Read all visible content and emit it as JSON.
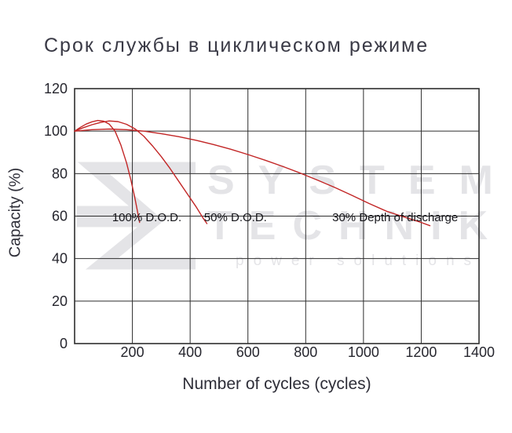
{
  "title": "Срок службы в циклическом режиме",
  "watermark": {
    "line1": "SYSTEM",
    "line2": "TECHNIK",
    "tagline": "power solutions",
    "color": "#e4e4e7"
  },
  "chart_data": {
    "type": "line",
    "title": "Срок службы в циклическом режиме",
    "xlabel": "Number of cycles (cycles)",
    "ylabel": "Capacity (%)",
    "xlim": [
      0,
      1400
    ],
    "ylim": [
      0,
      120
    ],
    "xticks": [
      200,
      400,
      600,
      800,
      1000,
      1200,
      1400
    ],
    "yticks": [
      0,
      20,
      40,
      60,
      80,
      100,
      120
    ],
    "grid": true,
    "grid_color": "#2e2e2e",
    "line_color": "#c22626",
    "label_color": "#15151a",
    "series": [
      {
        "name": "100% D.O.D.",
        "label": "100% D.O.D.",
        "label_pos": {
          "x": 130,
          "y": 59.5
        },
        "points": [
          [
            0,
            100
          ],
          [
            20,
            101.8
          ],
          [
            40,
            103.3
          ],
          [
            60,
            104.4
          ],
          [
            80,
            105
          ],
          [
            100,
            104.7
          ],
          [
            120,
            103.3
          ],
          [
            140,
            100
          ],
          [
            160,
            93.5
          ],
          [
            180,
            85
          ],
          [
            195,
            77
          ],
          [
            208,
            69
          ],
          [
            218,
            62
          ],
          [
            225,
            57
          ]
        ]
      },
      {
        "name": "50% D.O.D.",
        "label": "50% D.O.D.",
        "label_pos": {
          "x": 448,
          "y": 59.5
        },
        "points": [
          [
            0,
            100
          ],
          [
            30,
            101.6
          ],
          [
            60,
            103
          ],
          [
            90,
            104.1
          ],
          [
            120,
            104.8
          ],
          [
            150,
            104.5
          ],
          [
            180,
            103.2
          ],
          [
            210,
            101
          ],
          [
            240,
            97.5
          ],
          [
            270,
            93
          ],
          [
            300,
            88
          ],
          [
            330,
            82.5
          ],
          [
            360,
            76.5
          ],
          [
            390,
            70.5
          ],
          [
            420,
            64.5
          ],
          [
            445,
            59
          ],
          [
            458,
            56.5
          ]
        ]
      },
      {
        "name": "30% Depth of discharge",
        "label": "30% Depth of discharge",
        "label_pos": {
          "x": 892,
          "y": 59.5
        },
        "points": [
          [
            0,
            100
          ],
          [
            60,
            100.7
          ],
          [
            120,
            101
          ],
          [
            180,
            100.7
          ],
          [
            240,
            100
          ],
          [
            300,
            98.8
          ],
          [
            360,
            97.4
          ],
          [
            420,
            95.7
          ],
          [
            480,
            93.7
          ],
          [
            540,
            91.5
          ],
          [
            600,
            89
          ],
          [
            660,
            86.3
          ],
          [
            720,
            83.4
          ],
          [
            780,
            80.3
          ],
          [
            840,
            77
          ],
          [
            900,
            73.5
          ],
          [
            960,
            69.8
          ],
          [
            1020,
            65.9
          ],
          [
            1080,
            62.3
          ],
          [
            1140,
            59.6
          ],
          [
            1200,
            57
          ],
          [
            1230,
            55.5
          ]
        ]
      }
    ]
  }
}
